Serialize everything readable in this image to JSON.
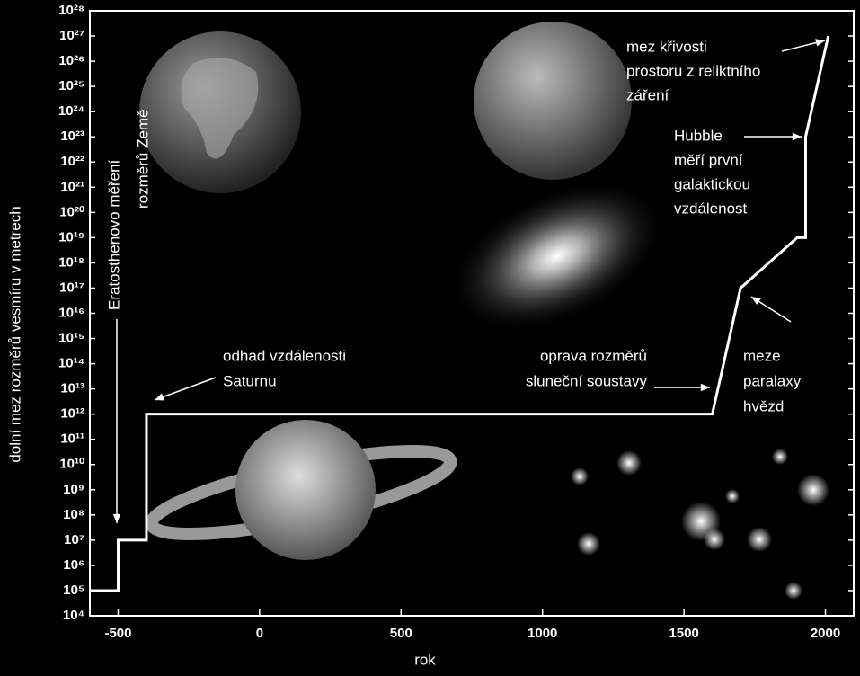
{
  "chart_data": {
    "type": "line",
    "x_label": "rok",
    "y_label": "dolní mez rozměrů vesmíru v metrech",
    "yscale": "log",
    "xlim": [
      -600,
      2100
    ],
    "ylim": [
      10000,
      1e+28
    ],
    "xticks": [
      -500,
      0,
      500,
      1000,
      1500,
      2000
    ],
    "yticks": [
      {
        "value": 10000,
        "label": "10⁴"
      },
      {
        "value": 100000,
        "label": "10⁵"
      },
      {
        "value": 1000000,
        "label": "10⁶"
      },
      {
        "value": 10000000,
        "label": "10⁷"
      },
      {
        "value": 100000000,
        "label": "10⁸"
      },
      {
        "value": 1000000000,
        "label": "10⁹"
      },
      {
        "value": 10000000000.0,
        "label": "10¹⁰"
      },
      {
        "value": 100000000000.0,
        "label": "10¹¹"
      },
      {
        "value": 1000000000000.0,
        "label": "10¹²"
      },
      {
        "value": 10000000000000.0,
        "label": "10¹³"
      },
      {
        "value": 100000000000000.0,
        "label": "10¹⁴"
      },
      {
        "value": 1000000000000000.0,
        "label": "10¹⁵"
      },
      {
        "value": 1e+16,
        "label": "10¹⁶"
      },
      {
        "value": 1e+17,
        "label": "10¹⁷"
      },
      {
        "value": 1e+18,
        "label": "10¹⁸"
      },
      {
        "value": 1e+19,
        "label": "10¹⁹"
      },
      {
        "value": 1e+20,
        "label": "10²⁰"
      },
      {
        "value": 1e+21,
        "label": "10²¹"
      },
      {
        "value": 1e+22,
        "label": "10²²"
      },
      {
        "value": 1e+23,
        "label": "10²³"
      },
      {
        "value": 1e+24,
        "label": "10²⁴"
      },
      {
        "value": 1e+25,
        "label": "10²⁵"
      },
      {
        "value": 1e+26,
        "label": "10²⁶"
      },
      {
        "value": 1e+27,
        "label": "10²⁷"
      },
      {
        "value": 1e+28,
        "label": "10²⁸"
      }
    ],
    "x": [
      -600,
      -500,
      -500,
      -400,
      -400,
      1600,
      1700,
      1900,
      1930,
      1930,
      2010
    ],
    "values": [
      100000,
      100000,
      10000000,
      10000000,
      1000000000000.0,
      1000000000000.0,
      1e+17,
      1e+19,
      1e+19,
      1e+23,
      1e+27
    ],
    "color": "#ffffff",
    "annotations": [
      {
        "lines": [
          "Eratosthenovo měření",
          "rozměrů Země"
        ]
      },
      {
        "lines": [
          "odhad vzdálenosti",
          "Saturnu"
        ]
      },
      {
        "lines": [
          "oprava rozměrů",
          "sluneční soustavy"
        ]
      },
      {
        "lines": [
          "meze",
          "paralaxy",
          "hvězd"
        ]
      },
      {
        "lines": [
          "Hubble",
          "měří první",
          "galaktickou",
          "vzdálenost"
        ]
      },
      {
        "lines": [
          "mez křivosti",
          "prostoru z reliktního",
          "záření"
        ]
      }
    ]
  }
}
